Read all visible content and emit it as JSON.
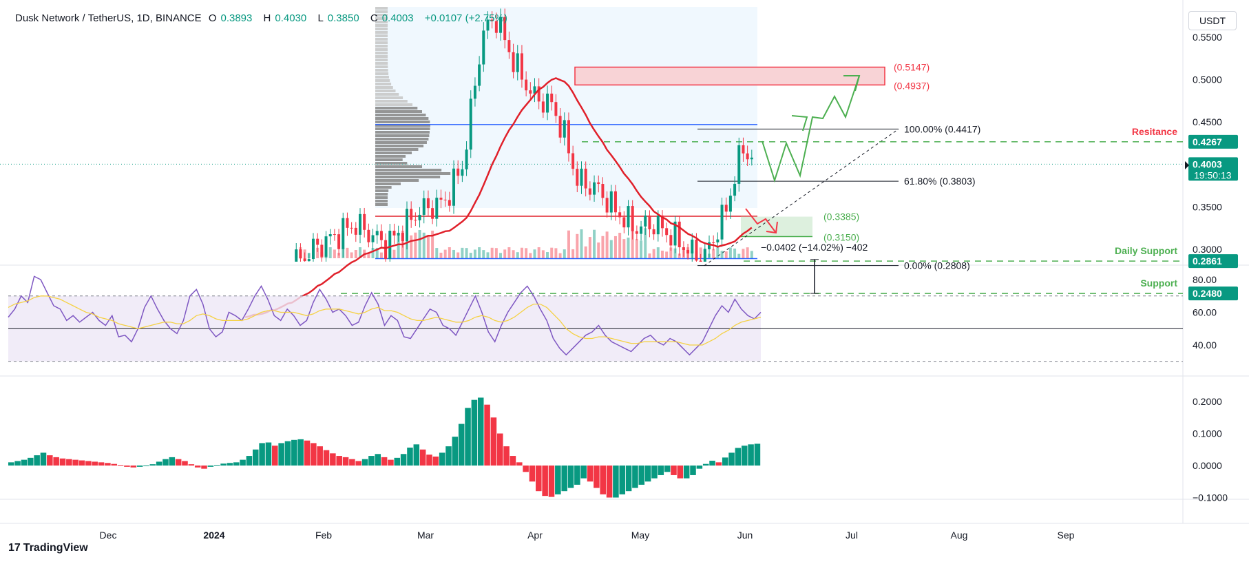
{
  "header": {
    "symbol": "Dusk Network / TetherUS, 1D, BINANCE",
    "o_label": "O",
    "o": "0.3893",
    "h_label": "H",
    "h": "0.4030",
    "l_label": "L",
    "l": "0.3850",
    "c_label": "C",
    "c": "0.4003",
    "change": "+0.0107 (+2.75%)"
  },
  "currency_button": "USDT",
  "branding": {
    "name": "TradingView",
    "mark": "17"
  },
  "colors": {
    "up": "#089981",
    "down": "#f23645",
    "ma": "#e0202a",
    "rsi": "#7e57c2",
    "rsi_ma": "#f5d142",
    "green_ann": "#4caf50",
    "resistance": "#f23645",
    "blue_line": "#2962ff"
  },
  "chart_data": [
    {
      "type": "candlestick",
      "title": "Dusk Network / TetherUS, 1D, BINANCE",
      "y_ticks": [
        "0.5500",
        "0.5000",
        "0.4500",
        "0.3500",
        "0.3000"
      ],
      "x_ticks": [
        "Dec",
        "2024",
        "Feb",
        "Mar",
        "Apr",
        "May",
        "Jun",
        "Jul",
        "Aug",
        "Sep"
      ],
      "price_axis_labels": [
        {
          "text": "0.4267",
          "value": 0.4267,
          "color": "#089981"
        },
        {
          "text": "0.4003",
          "value": 0.4003,
          "color": "#089981"
        },
        {
          "text": "19:50:13",
          "value": 0.4003,
          "color": "#089981"
        },
        {
          "text": "0.2861",
          "value": 0.2861,
          "color": "#089981"
        },
        {
          "text": "0.2480",
          "value": 0.248,
          "color": "#089981"
        }
      ],
      "levels": [
        {
          "name": "Resitance",
          "value": 0.4267
        },
        {
          "name": "Daily Support",
          "value": 0.2861
        },
        {
          "name": "Support",
          "value": 0.248
        }
      ],
      "supply_zone": {
        "top": "(0.5147)",
        "bottom": "(0.4937)",
        "top_v": 0.5147,
        "bottom_v": 0.4937
      },
      "demand_zone": {
        "top": "(0.3385)",
        "bottom": "(0.3150)",
        "top_v": 0.3385,
        "bottom_v": 0.315
      },
      "fibonacci": [
        {
          "label": "100.00% (0.4417)",
          "value": 0.4417
        },
        {
          "label": "61.80% (0.3803)",
          "value": 0.3803
        },
        {
          "label": "0.00% (0.2808)",
          "value": 0.2808
        }
      ],
      "measure": "−0.0402 (−14.02%) −402",
      "key_prices": {
        "last": 0.4003,
        "high": 0.575,
        "range_top": 0.447,
        "range_bottom": 0.289,
        "poc": 0.339
      }
    },
    {
      "type": "line",
      "title": "RSI",
      "y_ticks": [
        "80.00",
        "60.00",
        "40.00"
      ],
      "levels": [
        70,
        50,
        30
      ],
      "series": [
        {
          "values": [
            57,
            62,
            70,
            66,
            82,
            80,
            72,
            64,
            62,
            55,
            58,
            54,
            57,
            60,
            55,
            52,
            58,
            45,
            46,
            42,
            50,
            63,
            70,
            62,
            55,
            50,
            47,
            55,
            70,
            74,
            65,
            50,
            45,
            48,
            60,
            58,
            55,
            62,
            70,
            76,
            68,
            58,
            55,
            62,
            58,
            52,
            55,
            66,
            74,
            68,
            60,
            62,
            58,
            52,
            54,
            64,
            72,
            65,
            52,
            58,
            55,
            45,
            44,
            50,
            56,
            62,
            60,
            52,
            50,
            46,
            54,
            62,
            70,
            60,
            48,
            42,
            52,
            60,
            66,
            72,
            76,
            70,
            62,
            55,
            44,
            38,
            34,
            38,
            42,
            46,
            48,
            52,
            46,
            42,
            40,
            38,
            36,
            40,
            44,
            46,
            42,
            40,
            44,
            42,
            38,
            34,
            38,
            42,
            50,
            58,
            64,
            60,
            68,
            62,
            58,
            56,
            60
          ]
        },
        {
          "values": [
            63,
            65,
            66,
            67,
            69,
            70,
            70,
            69,
            68,
            66,
            64,
            62,
            60,
            59,
            57,
            56,
            55,
            53,
            52,
            51,
            50,
            51,
            52,
            53,
            54,
            54,
            53,
            53,
            55,
            58,
            59,
            58,
            56,
            55,
            55,
            55,
            55,
            56,
            58,
            60,
            61,
            61,
            60,
            60,
            60,
            59,
            58,
            59,
            61,
            62,
            62,
            62,
            61,
            60,
            59,
            60,
            62,
            63,
            61,
            61,
            60,
            58,
            56,
            55,
            55,
            56,
            57,
            56,
            55,
            54,
            54,
            55,
            57,
            58,
            57,
            55,
            54,
            55,
            57,
            60,
            63,
            65,
            65,
            63,
            59,
            55,
            50,
            47,
            45,
            44,
            44,
            45,
            45,
            44,
            43,
            42,
            41,
            41,
            42,
            42,
            42,
            42,
            42,
            42,
            41,
            40,
            40,
            40,
            42,
            44,
            47,
            49,
            52,
            54,
            55,
            56,
            57
          ]
        }
      ]
    },
    {
      "type": "bar",
      "title": "MACD histogram",
      "y_ticks": [
        "0.2000",
        "0.1000",
        "0.0000",
        "−0.1000"
      ],
      "values": [
        0.01,
        0.014,
        0.018,
        0.024,
        0.032,
        0.04,
        0.032,
        0.026,
        0.022,
        0.02,
        0.018,
        0.016,
        0.014,
        0.012,
        0.01,
        0.008,
        0.005,
        0.002,
        -0.004,
        -0.006,
        -0.004,
        -0.002,
        0.004,
        0.012,
        0.02,
        0.026,
        0.02,
        0.014,
        0.004,
        -0.006,
        -0.01,
        -0.004,
        0.002,
        0.006,
        0.008,
        0.01,
        0.018,
        0.03,
        0.05,
        0.07,
        0.072,
        0.062,
        0.07,
        0.076,
        0.08,
        0.082,
        0.078,
        0.07,
        0.06,
        0.048,
        0.038,
        0.03,
        0.026,
        0.02,
        0.014,
        0.02,
        0.03,
        0.036,
        0.026,
        0.018,
        0.024,
        0.036,
        0.056,
        0.066,
        0.05,
        0.034,
        0.028,
        0.04,
        0.06,
        0.09,
        0.13,
        0.18,
        0.205,
        0.212,
        0.19,
        0.15,
        0.1,
        0.06,
        0.03,
        0.01,
        -0.02,
        -0.05,
        -0.08,
        -0.095,
        -0.098,
        -0.09,
        -0.08,
        -0.07,
        -0.06,
        -0.04,
        -0.05,
        -0.07,
        -0.09,
        -0.1,
        -0.1,
        -0.09,
        -0.08,
        -0.07,
        -0.06,
        -0.05,
        -0.04,
        -0.03,
        -0.02,
        -0.03,
        -0.04,
        -0.04,
        -0.03,
        -0.01,
        0.005,
        0.015,
        0.01,
        0.025,
        0.04,
        0.055,
        0.062,
        0.066,
        0.068
      ]
    }
  ]
}
